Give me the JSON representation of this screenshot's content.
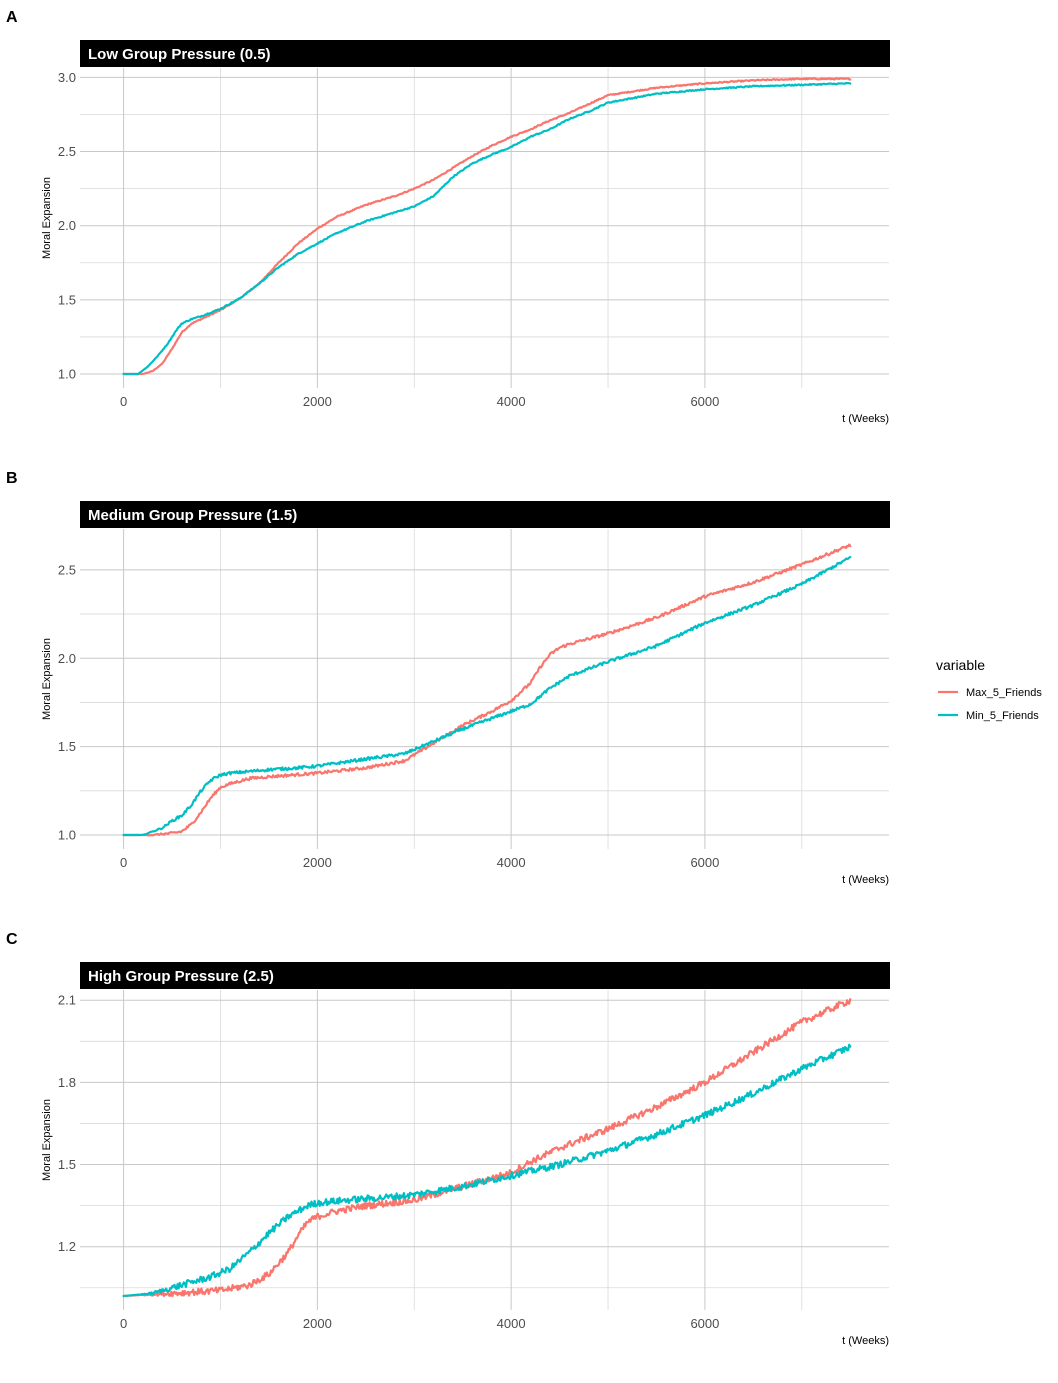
{
  "legend": {
    "title": "variable",
    "entries": [
      {
        "name": "Max_5_Friends",
        "color": "#F8766D"
      },
      {
        "name": "Min_5_Friends",
        "color": "#00BFC4"
      }
    ]
  },
  "chart_data": [
    {
      "type": "line",
      "panel_letter": "A",
      "title": "Low Group Pressure (0.5)",
      "xlabel": "t (Weeks)",
      "ylabel": "Moral Expansion",
      "xlim": [
        -450,
        7900
      ],
      "ylim": [
        1.0,
        3.05
      ],
      "xticks": [
        0,
        2000,
        4000,
        6000
      ],
      "xtick_labels": [
        "0",
        "2000",
        "4000",
        "6000"
      ],
      "yticks": [
        1.0,
        1.5,
        2.0,
        2.5,
        3.0
      ],
      "ytick_labels": [
        "1.0",
        "1.5",
        "2.0",
        "2.5",
        "3.0"
      ],
      "grid": true,
      "noise": 0.004,
      "series": [
        {
          "name": "Max_5_Friends",
          "color": "#F8766D",
          "x": [
            0,
            200,
            300,
            400,
            500,
            600,
            700,
            800,
            1000,
            1200,
            1400,
            1600,
            1800,
            2000,
            2200,
            2500,
            2800,
            3000,
            3200,
            3400,
            3600,
            3800,
            4000,
            4200,
            4400,
            4600,
            4800,
            5000,
            5500,
            6000,
            6500,
            7000,
            7500
          ],
          "y": [
            1.0,
            1.0,
            1.02,
            1.07,
            1.17,
            1.28,
            1.34,
            1.37,
            1.43,
            1.51,
            1.61,
            1.75,
            1.88,
            1.98,
            2.06,
            2.14,
            2.2,
            2.25,
            2.31,
            2.39,
            2.47,
            2.54,
            2.6,
            2.65,
            2.71,
            2.76,
            2.82,
            2.88,
            2.93,
            2.96,
            2.98,
            2.99,
            2.99
          ]
        },
        {
          "name": "Min_5_Friends",
          "color": "#00BFC4",
          "x": [
            0,
            150,
            250,
            350,
            450,
            550,
            600,
            700,
            800,
            1000,
            1200,
            1400,
            1600,
            1800,
            2000,
            2200,
            2500,
            2800,
            3000,
            3200,
            3400,
            3600,
            3800,
            4000,
            4200,
            4400,
            4600,
            4800,
            5000,
            5500,
            6000,
            6500,
            7000,
            7500
          ],
          "y": [
            1.0,
            1.0,
            1.05,
            1.12,
            1.2,
            1.3,
            1.34,
            1.37,
            1.39,
            1.44,
            1.51,
            1.61,
            1.72,
            1.81,
            1.88,
            1.95,
            2.03,
            2.09,
            2.13,
            2.2,
            2.33,
            2.42,
            2.48,
            2.53,
            2.6,
            2.65,
            2.72,
            2.77,
            2.83,
            2.89,
            2.92,
            2.94,
            2.95,
            2.96
          ]
        }
      ]
    },
    {
      "type": "line",
      "panel_letter": "B",
      "title": "Medium Group Pressure (1.5)",
      "xlabel": "t (Weeks)",
      "ylabel": "Moral Expansion",
      "xlim": [
        -450,
        7900
      ],
      "ylim": [
        1.0,
        2.72
      ],
      "xticks": [
        0,
        2000,
        4000,
        6000
      ],
      "xtick_labels": [
        "0",
        "2000",
        "4000",
        "6000"
      ],
      "yticks": [
        1.0,
        1.5,
        2.0,
        2.5
      ],
      "ytick_labels": [
        "1.0",
        "1.5",
        "2.0",
        "2.5"
      ],
      "grid": true,
      "noise": 0.008,
      "series": [
        {
          "name": "Max_5_Friends",
          "color": "#F8766D",
          "x": [
            0,
            300,
            500,
            600,
            700,
            800,
            900,
            1000,
            1100,
            1300,
            1500,
            2000,
            2500,
            2900,
            3200,
            3500,
            3800,
            4000,
            4200,
            4300,
            4400,
            4500,
            4600,
            5000,
            5500,
            6000,
            6500,
            7000,
            7500
          ],
          "y": [
            1.0,
            1.0,
            1.01,
            1.02,
            1.06,
            1.13,
            1.21,
            1.27,
            1.29,
            1.32,
            1.33,
            1.35,
            1.38,
            1.42,
            1.52,
            1.62,
            1.7,
            1.76,
            1.86,
            1.95,
            2.02,
            2.06,
            2.08,
            2.14,
            2.23,
            2.35,
            2.43,
            2.53,
            2.64
          ]
        },
        {
          "name": "Min_5_Friends",
          "color": "#00BFC4",
          "x": [
            0,
            200,
            400,
            500,
            600,
            700,
            800,
            900,
            1000,
            1100,
            1300,
            1500,
            1800,
            2000,
            2500,
            2900,
            3200,
            3500,
            3800,
            4000,
            4200,
            4400,
            4600,
            5000,
            5500,
            6000,
            6500,
            7000,
            7500
          ],
          "y": [
            1.0,
            1.0,
            1.04,
            1.08,
            1.11,
            1.17,
            1.25,
            1.31,
            1.34,
            1.35,
            1.36,
            1.37,
            1.38,
            1.39,
            1.43,
            1.46,
            1.53,
            1.6,
            1.66,
            1.7,
            1.74,
            1.83,
            1.9,
            1.98,
            2.07,
            2.2,
            2.3,
            2.42,
            2.57
          ]
        }
      ]
    },
    {
      "type": "line",
      "panel_letter": "C",
      "title": "High Group Pressure (2.5)",
      "xlabel": "t (Weeks)",
      "ylabel": "Moral Expansion",
      "xlim": [
        -450,
        7900
      ],
      "ylim": [
        1.02,
        2.13
      ],
      "xticks": [
        0,
        2000,
        4000,
        6000
      ],
      "xtick_labels": [
        "0",
        "2000",
        "4000",
        "6000"
      ],
      "yticks": [
        1.2,
        1.5,
        1.8,
        2.1
      ],
      "ytick_labels": [
        "1.2",
        "1.5",
        "1.8",
        "2.1"
      ],
      "grid": true,
      "noise": 0.012,
      "series": [
        {
          "name": "Max_5_Friends",
          "color": "#F8766D",
          "x": [
            0,
            500,
            1000,
            1300,
            1500,
            1700,
            1800,
            1900,
            2000,
            2200,
            2500,
            3000,
            3500,
            4000,
            4200,
            4500,
            5000,
            5500,
            6000,
            6500,
            7000,
            7500
          ],
          "y": [
            1.02,
            1.03,
            1.04,
            1.06,
            1.1,
            1.18,
            1.24,
            1.29,
            1.31,
            1.33,
            1.35,
            1.37,
            1.42,
            1.47,
            1.51,
            1.56,
            1.63,
            1.71,
            1.8,
            1.91,
            2.02,
            2.1
          ]
        },
        {
          "name": "Min_5_Friends",
          "color": "#00BFC4",
          "x": [
            0,
            300,
            600,
            900,
            1100,
            1300,
            1500,
            1700,
            1900,
            2000,
            2300,
            2700,
            3000,
            3500,
            4000,
            4500,
            5000,
            5500,
            6000,
            6500,
            7000,
            7500
          ],
          "y": [
            1.02,
            1.03,
            1.06,
            1.09,
            1.12,
            1.18,
            1.25,
            1.31,
            1.35,
            1.36,
            1.37,
            1.38,
            1.39,
            1.42,
            1.46,
            1.5,
            1.55,
            1.61,
            1.68,
            1.76,
            1.85,
            1.93
          ]
        }
      ]
    }
  ]
}
